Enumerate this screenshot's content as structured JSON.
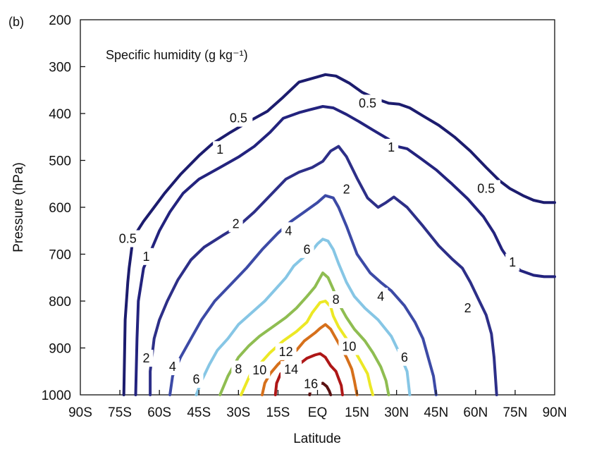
{
  "panel_label": "(b)",
  "chart_data": {
    "type": "contour",
    "title": "Specific humidity (g kg⁻¹)",
    "xlabel": "Latitude",
    "ylabel": "Pressure (hPa)",
    "xlim": [
      -90,
      90
    ],
    "ylim": [
      1000,
      200
    ],
    "x_ticks": [
      {
        "value": -90,
        "label": "90S"
      },
      {
        "value": -75,
        "label": "75S"
      },
      {
        "value": -60,
        "label": "60S"
      },
      {
        "value": -45,
        "label": "45S"
      },
      {
        "value": -30,
        "label": "30S"
      },
      {
        "value": -15,
        "label": "15S"
      },
      {
        "value": 0,
        "label": "EQ"
      },
      {
        "value": 15,
        "label": "15N"
      },
      {
        "value": 30,
        "label": "30N"
      },
      {
        "value": 45,
        "label": "45N"
      },
      {
        "value": 60,
        "label": "60N"
      },
      {
        "value": 75,
        "label": "75N"
      },
      {
        "value": 90,
        "label": "90N"
      }
    ],
    "y_ticks": [
      {
        "value": 200,
        "label": "200"
      },
      {
        "value": 300,
        "label": "300"
      },
      {
        "value": 400,
        "label": "400"
      },
      {
        "value": 500,
        "label": "500"
      },
      {
        "value": 600,
        "label": "600"
      },
      {
        "value": 700,
        "label": "700"
      },
      {
        "value": 800,
        "label": "800"
      },
      {
        "value": 900,
        "label": "900"
      },
      {
        "value": 1000,
        "label": "1000"
      }
    ],
    "contours": [
      {
        "level": "0.5",
        "color": "#1c1c6e",
        "points": [
          [
            -73.5,
            1000
          ],
          [
            -73,
            840
          ],
          [
            -72,
            760
          ],
          [
            -71.5,
            730
          ],
          [
            -70,
            665
          ],
          [
            -66,
            630
          ],
          [
            -62,
            600
          ],
          [
            -58,
            570
          ],
          [
            -52,
            530
          ],
          [
            -45,
            490
          ],
          [
            -40,
            465
          ],
          [
            -33,
            440
          ],
          [
            -27,
            420
          ],
          [
            -19,
            395
          ],
          [
            -13,
            365
          ],
          [
            -7,
            333
          ],
          [
            0,
            322
          ],
          [
            3,
            317
          ],
          [
            7,
            320
          ],
          [
            12,
            335
          ],
          [
            17,
            355
          ],
          [
            22,
            368
          ],
          [
            27,
            378
          ],
          [
            31,
            380
          ],
          [
            35,
            388
          ],
          [
            40,
            405
          ],
          [
            46,
            425
          ],
          [
            52,
            450
          ],
          [
            58,
            480
          ],
          [
            64,
            515
          ],
          [
            69,
            543
          ],
          [
            73,
            560
          ],
          [
            78,
            575
          ],
          [
            82,
            585
          ],
          [
            86,
            590
          ],
          [
            90,
            590
          ]
        ],
        "labels": [
          {
            "at": [
              -30,
              410
            ],
            "text": "0.5"
          },
          {
            "at": [
              19,
              378
            ],
            "text": "0.5"
          },
          {
            "at": [
              -72,
              667
            ],
            "text": "0.5"
          },
          {
            "at": [
              64,
              560
            ],
            "text": "0.5"
          }
        ]
      },
      {
        "level": "1",
        "color": "#23237e",
        "points": [
          [
            -69,
            1000
          ],
          [
            -68.5,
            880
          ],
          [
            -68,
            800
          ],
          [
            -66,
            730
          ],
          [
            -63,
            690
          ],
          [
            -60,
            650
          ],
          [
            -56,
            610
          ],
          [
            -51,
            570
          ],
          [
            -45,
            540
          ],
          [
            -37,
            515
          ],
          [
            -30,
            493
          ],
          [
            -24,
            470
          ],
          [
            -18,
            440
          ],
          [
            -13,
            410
          ],
          [
            -7,
            398
          ],
          [
            -3,
            392
          ],
          [
            2,
            385
          ],
          [
            6,
            388
          ],
          [
            11,
            402
          ],
          [
            16,
            418
          ],
          [
            21,
            435
          ],
          [
            27,
            455
          ],
          [
            30,
            470
          ],
          [
            34,
            475
          ],
          [
            39,
            495
          ],
          [
            45,
            520
          ],
          [
            51,
            550
          ],
          [
            57,
            582
          ],
          [
            63,
            620
          ],
          [
            67,
            655
          ],
          [
            70,
            690
          ],
          [
            73,
            715
          ],
          [
            77,
            735
          ],
          [
            82,
            745
          ],
          [
            86,
            748
          ],
          [
            90,
            748
          ]
        ],
        "labels": [
          {
            "at": [
              -37,
              477
            ],
            "text": "1"
          },
          {
            "at": [
              28,
              472
            ],
            "text": "1"
          },
          {
            "at": [
              -65,
              705
            ],
            "text": "1"
          },
          {
            "at": [
              74,
              717
            ],
            "text": "1"
          }
        ]
      },
      {
        "level": "2",
        "color": "#2d2f88",
        "points": [
          [
            -63.5,
            1000
          ],
          [
            -63.5,
            950
          ],
          [
            -62,
            880
          ],
          [
            -60,
            840
          ],
          [
            -57,
            800
          ],
          [
            -53,
            755
          ],
          [
            -48,
            712
          ],
          [
            -43,
            685
          ],
          [
            -36,
            660
          ],
          [
            -30,
            640
          ],
          [
            -24,
            610
          ],
          [
            -18,
            575
          ],
          [
            -12,
            540
          ],
          [
            -7,
            525
          ],
          [
            -2,
            515
          ],
          [
            2,
            502
          ],
          [
            5,
            480
          ],
          [
            8,
            470
          ],
          [
            11,
            492
          ],
          [
            15,
            538
          ],
          [
            19,
            580
          ],
          [
            23,
            600
          ],
          [
            26,
            590
          ],
          [
            29,
            578
          ],
          [
            34,
            600
          ],
          [
            40,
            640
          ],
          [
            46,
            682
          ],
          [
            51,
            710
          ],
          [
            55,
            730
          ],
          [
            58,
            760
          ],
          [
            61,
            795
          ],
          [
            64,
            830
          ],
          [
            66,
            870
          ],
          [
            67,
            920
          ],
          [
            68,
            1000
          ]
        ],
        "labels": [
          {
            "at": [
              -31,
              635
            ],
            "text": "2"
          },
          {
            "at": [
              11,
              562
            ],
            "text": "2"
          },
          {
            "at": [
              -65,
              922
            ],
            "text": "2"
          },
          {
            "at": [
              57,
              815
            ],
            "text": "2"
          }
        ]
      },
      {
        "level": "4",
        "color": "#3c4aa6",
        "points": [
          [
            -56,
            1000
          ],
          [
            -55,
            960
          ],
          [
            -52,
            920
          ],
          [
            -48,
            880
          ],
          [
            -44,
            840
          ],
          [
            -39,
            800
          ],
          [
            -33,
            765
          ],
          [
            -27,
            730
          ],
          [
            -21,
            690
          ],
          [
            -15,
            655
          ],
          [
            -10,
            630
          ],
          [
            -5,
            610
          ],
          [
            0,
            590
          ],
          [
            3,
            575
          ],
          [
            6,
            580
          ],
          [
            8,
            600
          ],
          [
            11,
            640
          ],
          [
            15,
            700
          ],
          [
            20,
            740
          ],
          [
            24,
            760
          ],
          [
            28,
            778
          ],
          [
            33,
            810
          ],
          [
            37,
            845
          ],
          [
            40,
            880
          ],
          [
            42,
            920
          ],
          [
            44,
            960
          ],
          [
            45,
            1000
          ]
        ],
        "labels": [
          {
            "at": [
              -11,
              650
            ],
            "text": "4"
          },
          {
            "at": [
              24,
              790
            ],
            "text": "4"
          },
          {
            "at": [
              -55,
              940
            ],
            "text": "4"
          }
        ]
      },
      {
        "level": "6",
        "color": "#86c6e5",
        "points": [
          [
            -46,
            1000
          ],
          [
            -44,
            970
          ],
          [
            -41,
            935
          ],
          [
            -38,
            905
          ],
          [
            -34,
            880
          ],
          [
            -30,
            850
          ],
          [
            -25,
            825
          ],
          [
            -20,
            800
          ],
          [
            -16,
            775
          ],
          [
            -12,
            750
          ],
          [
            -9,
            725
          ],
          [
            -6,
            710
          ],
          [
            -2,
            692
          ],
          [
            0,
            678
          ],
          [
            2,
            668
          ],
          [
            4,
            672
          ],
          [
            6,
            690
          ],
          [
            8,
            720
          ],
          [
            11,
            760
          ],
          [
            14,
            790
          ],
          [
            18,
            815
          ],
          [
            23,
            840
          ],
          [
            28,
            875
          ],
          [
            31,
            910
          ],
          [
            34,
            950
          ],
          [
            35,
            1000
          ]
        ],
        "labels": [
          {
            "at": [
              -4,
              690
            ],
            "text": "6"
          },
          {
            "at": [
              -46,
              967
            ],
            "text": "6"
          },
          {
            "at": [
              33,
              920
            ],
            "text": "6"
          }
        ]
      },
      {
        "level": "8",
        "color": "#8fbd51",
        "points": [
          [
            -37,
            1000
          ],
          [
            -34,
            960
          ],
          [
            -30,
            920
          ],
          [
            -26,
            895
          ],
          [
            -22,
            875
          ],
          [
            -17,
            855
          ],
          [
            -12,
            835
          ],
          [
            -8,
            815
          ],
          [
            -4,
            790
          ],
          [
            -1,
            770
          ],
          [
            1,
            750
          ],
          [
            2,
            740
          ],
          [
            4,
            750
          ],
          [
            6,
            775
          ],
          [
            8,
            805
          ],
          [
            11,
            835
          ],
          [
            14,
            860
          ],
          [
            18,
            885
          ],
          [
            21,
            910
          ],
          [
            24,
            940
          ],
          [
            26,
            970
          ],
          [
            27,
            1000
          ]
        ],
        "labels": [
          {
            "at": [
              -30,
              945
            ],
            "text": "8"
          },
          {
            "at": [
              7,
              797
            ],
            "text": "8"
          }
        ]
      },
      {
        "level": "10",
        "color": "#ece825",
        "points": [
          [
            -29,
            1000
          ],
          [
            -27,
            975
          ],
          [
            -25,
            950
          ],
          [
            -22,
            935
          ],
          [
            -18,
            910
          ],
          [
            -13,
            885
          ],
          [
            -8,
            865
          ],
          [
            -4,
            845
          ],
          [
            -2,
            825
          ],
          [
            1,
            803
          ],
          [
            3,
            800
          ],
          [
            5,
            812
          ],
          [
            6,
            832
          ],
          [
            8,
            855
          ],
          [
            11,
            880
          ],
          [
            13,
            895
          ],
          [
            15,
            915
          ],
          [
            17,
            935
          ],
          [
            19,
            955
          ],
          [
            20,
            980
          ],
          [
            21,
            1000
          ]
        ],
        "labels": [
          {
            "at": [
              -22,
              947
            ],
            "text": "10"
          },
          {
            "at": [
              12,
              897
            ],
            "text": "10"
          }
        ]
      },
      {
        "level": "12",
        "color": "#d6701b",
        "points": [
          [
            -21,
            1000
          ],
          [
            -20,
            975
          ],
          [
            -18,
            955
          ],
          [
            -15,
            935
          ],
          [
            -12,
            920
          ],
          [
            -8,
            905
          ],
          [
            -5,
            885
          ],
          [
            -1,
            868
          ],
          [
            1,
            858
          ],
          [
            3,
            850
          ],
          [
            5,
            860
          ],
          [
            7,
            880
          ],
          [
            9,
            900
          ],
          [
            11,
            920
          ],
          [
            13,
            945
          ],
          [
            14,
            970
          ],
          [
            15,
            1000
          ]
        ],
        "labels": [
          {
            "at": [
              -12,
              908
            ],
            "text": "12"
          }
        ]
      },
      {
        "level": "14",
        "color": "#ae1717",
        "points": [
          [
            -16,
            1000
          ],
          [
            -15.5,
            975
          ],
          [
            -14,
            955
          ],
          [
            -10,
            945
          ],
          [
            -7,
            935
          ],
          [
            -4,
            922
          ],
          [
            -1,
            915
          ],
          [
            1,
            912
          ],
          [
            3,
            920
          ],
          [
            5,
            938
          ],
          [
            7,
            950
          ],
          [
            8,
            965
          ],
          [
            9,
            980
          ],
          [
            9.5,
            1000
          ]
        ],
        "labels": [
          {
            "at": [
              -10,
              946
            ],
            "text": "14"
          }
        ]
      },
      {
        "level": "16",
        "color": "#5a1111",
        "points": [
          [
            -3,
            1000
          ],
          [
            -2.5,
            985
          ],
          [
            0,
            978
          ],
          [
            2,
            975
          ],
          [
            3.5,
            982
          ],
          [
            4.5,
            992
          ],
          [
            5,
            1000
          ]
        ],
        "labels": [
          {
            "at": [
              -2.5,
              977
            ],
            "text": "16"
          }
        ]
      }
    ]
  }
}
